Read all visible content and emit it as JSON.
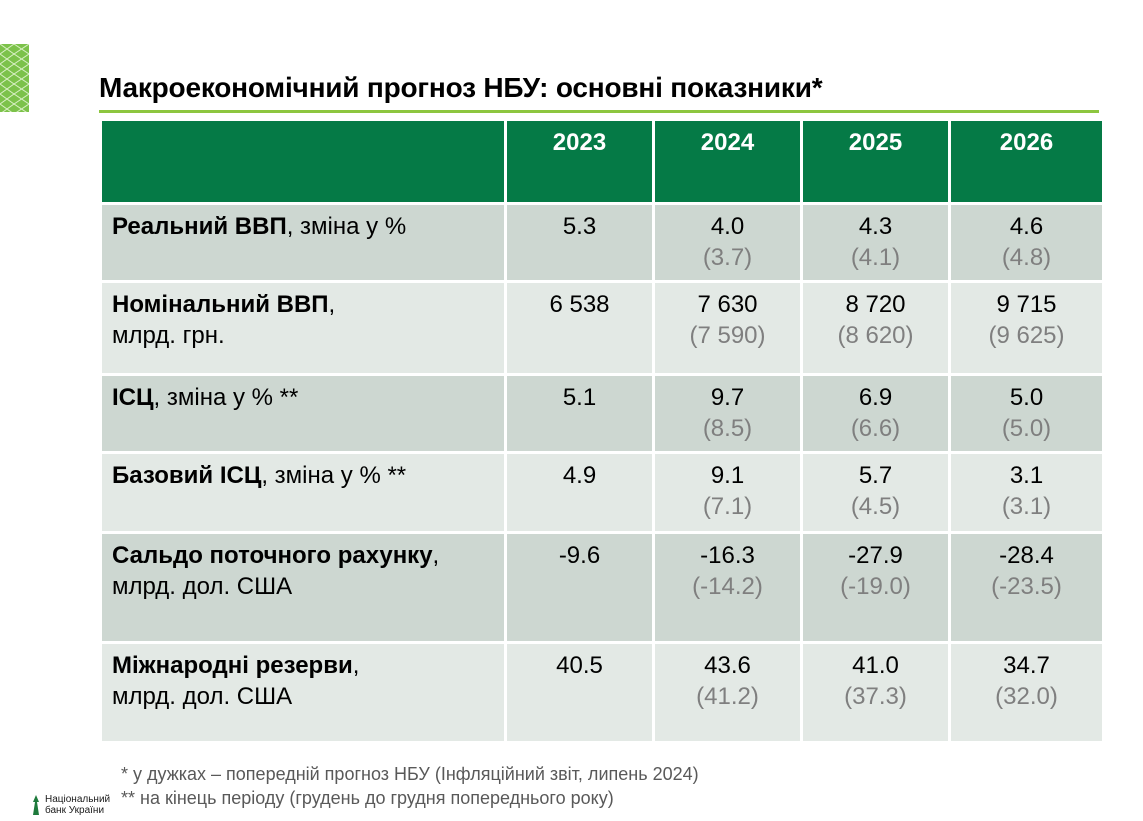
{
  "title": "Макроекономічний прогноз НБУ: основні показники*",
  "table": {
    "years": [
      "2023",
      "2024",
      "2025",
      "2026"
    ],
    "rows": [
      {
        "label_bold": "Реальний ВВП",
        "label_rest": ", зміна у %",
        "label_line2": "",
        "values": [
          {
            "current": "5.3",
            "previous": ""
          },
          {
            "current": "4.0",
            "previous": "(3.7)"
          },
          {
            "current": "4.3",
            "previous": "(4.1)"
          },
          {
            "current": "4.6",
            "previous": "(4.8)"
          }
        ]
      },
      {
        "label_bold": "Номінальний ВВП",
        "label_rest": ",",
        "label_line2": "млрд. грн.",
        "values": [
          {
            "current": "6 538",
            "previous": ""
          },
          {
            "current": "7 630",
            "previous": "(7 590)"
          },
          {
            "current": "8 720",
            "previous": "(8 620)"
          },
          {
            "current": "9 715",
            "previous": "(9 625)"
          }
        ]
      },
      {
        "label_bold": "ІСЦ",
        "label_rest": ", зміна у % **",
        "label_line2": "",
        "values": [
          {
            "current": "5.1",
            "previous": ""
          },
          {
            "current": "9.7",
            "previous": "(8.5)"
          },
          {
            "current": "6.9",
            "previous": "(6.6)"
          },
          {
            "current": "5.0",
            "previous": "(5.0)"
          }
        ]
      },
      {
        "label_bold": "Базовий ІСЦ",
        "label_rest": ", зміна у % **",
        "label_line2": "",
        "values": [
          {
            "current": "4.9",
            "previous": ""
          },
          {
            "current": "9.1",
            "previous": "(7.1)"
          },
          {
            "current": "5.7",
            "previous": "(4.5)"
          },
          {
            "current": "3.1",
            "previous": "(3.1)"
          }
        ]
      },
      {
        "label_bold": "Сальдо поточного рахунку",
        "label_rest": ",",
        "label_line2": "млрд. дол. США",
        "values": [
          {
            "current": "-9.6",
            "previous": ""
          },
          {
            "current": "-16.3",
            "previous": "(-14.2)"
          },
          {
            "current": "-27.9",
            "previous": "(-19.0)"
          },
          {
            "current": "-28.4",
            "previous": "(-23.5)"
          }
        ]
      },
      {
        "label_bold": "Міжнародні резерви",
        "label_rest": ",",
        "label_line2": "млрд. дол. США",
        "values": [
          {
            "current": "40.5",
            "previous": ""
          },
          {
            "current": "43.6",
            "previous": "(41.2)"
          },
          {
            "current": "41.0",
            "previous": "(37.3)"
          },
          {
            "current": "34.7",
            "previous": "(32.0)"
          }
        ]
      }
    ]
  },
  "footnotes": [
    "* у дужках – попередній прогноз НБУ (Інфляційний звіт, липень 2024)",
    "** на кінець періоду (грудень до грудня попереднього року)"
  ],
  "logo": {
    "line1": "Національний",
    "line2": "банк України",
    "icon": "nbu-logo-icon"
  },
  "colors": {
    "header_green": "#057a46",
    "accent_line": "#8dc63f",
    "row_dark": "#cdd7d1",
    "row_light": "#e3e9e5",
    "previous_value_gray": "#7f7f7f"
  }
}
